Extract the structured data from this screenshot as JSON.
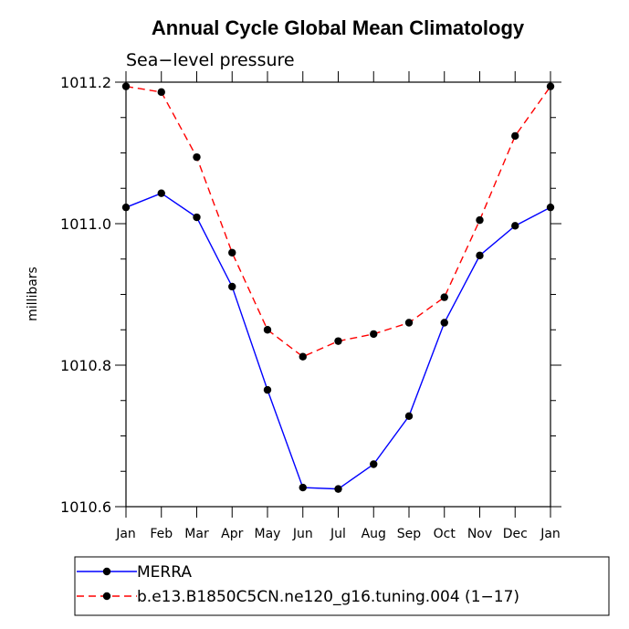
{
  "chart_data": {
    "type": "line",
    "title": "Annual Cycle Global Mean Climatology",
    "subtitle": "Sea−level pressure",
    "xlabel": "",
    "ylabel": "millibars",
    "categories": [
      "Jan",
      "Feb",
      "Mar",
      "Apr",
      "May",
      "Jun",
      "Jul",
      "Aug",
      "Sep",
      "Oct",
      "Nov",
      "Dec",
      "Jan"
    ],
    "ylim": [
      1010.6,
      1011.2
    ],
    "yticks": [
      1010.6,
      1010.8,
      1011.0,
      1011.2
    ],
    "ytick_labels": [
      "1010.6",
      "1010.8",
      "1011.0",
      "1011.2"
    ],
    "series": [
      {
        "name": "MERRA",
        "color": "#0000ff",
        "dash": "solid",
        "marker": "circle",
        "values": [
          1011.023,
          1011.043,
          1011.009,
          1010.911,
          1010.765,
          1010.627,
          1010.625,
          1010.66,
          1010.728,
          1010.86,
          1010.955,
          1010.997,
          1011.023
        ]
      },
      {
        "name": "b.e13.B1850C5CN.ne120_g16.tuning.004 (1−17)",
        "color": "#ff0000",
        "dash": "dashed",
        "marker": "circle",
        "values": [
          1011.194,
          1011.186,
          1011.094,
          1010.959,
          1010.85,
          1010.812,
          1010.834,
          1010.844,
          1010.86,
          1010.896,
          1011.005,
          1011.124,
          1011.194
        ]
      }
    ],
    "grid": false,
    "legend": "bottom"
  }
}
